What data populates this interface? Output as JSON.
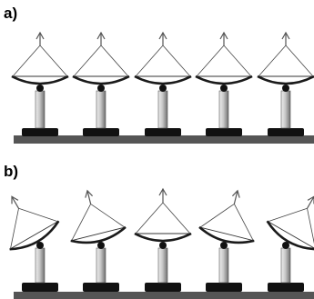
{
  "panels": [
    {
      "label": "a)",
      "dish_tilts_deg": [
        0,
        0,
        0,
        0,
        0
      ]
    },
    {
      "label": "b)",
      "dish_tilts_deg": [
        -30,
        -14,
        0,
        14,
        30
      ]
    }
  ],
  "colors": {
    "ground": "#555555",
    "base": "#111111",
    "dish_fill": "#ffffff",
    "dish_rim": "#1a1a1a",
    "arrow": "#555555",
    "pole_light": "#eeeeee",
    "pole_dark": "#6f6f6f"
  }
}
